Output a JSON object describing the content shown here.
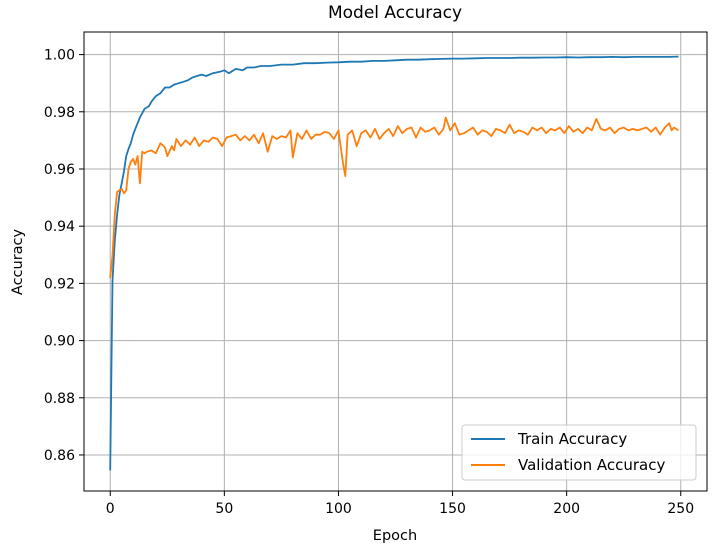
{
  "chart_data": {
    "type": "line",
    "title": "Model Accuracy",
    "xlabel": "Epoch",
    "ylabel": "Accuracy",
    "xlim": [
      -11.5,
      261.5
    ],
    "ylim": [
      0.8474,
      1.0079
    ],
    "xticks": [
      0,
      50,
      100,
      150,
      200,
      250
    ],
    "xtick_labels": [
      "0",
      "50",
      "100",
      "150",
      "200",
      "250"
    ],
    "yticks": [
      0.86,
      0.88,
      0.9,
      0.92,
      0.94,
      0.96,
      0.98,
      1.0
    ],
    "ytick_labels": [
      "0.86",
      "0.88",
      "0.90",
      "0.92",
      "0.94",
      "0.96",
      "0.98",
      "1.00"
    ],
    "grid": true,
    "legend_location": "lower right",
    "series": [
      {
        "name": "Train Accuracy",
        "color": "#1f77b4",
        "points": [
          [
            0,
            0.8546
          ],
          [
            1,
            0.921
          ],
          [
            2,
            0.935
          ],
          [
            3,
            0.944
          ],
          [
            4,
            0.951
          ],
          [
            5,
            0.955
          ],
          [
            6,
            0.959
          ],
          [
            7,
            0.9645
          ],
          [
            8,
            0.967
          ],
          [
            9,
            0.969
          ],
          [
            10,
            0.972
          ],
          [
            11,
            0.974
          ],
          [
            12,
            0.976
          ],
          [
            13,
            0.978
          ],
          [
            14,
            0.9795
          ],
          [
            15,
            0.981
          ],
          [
            16,
            0.9815
          ],
          [
            17,
            0.982
          ],
          [
            18,
            0.9835
          ],
          [
            19,
            0.9845
          ],
          [
            20,
            0.9855
          ],
          [
            22,
            0.9865
          ],
          [
            24,
            0.9885
          ],
          [
            26,
            0.9885
          ],
          [
            28,
            0.9895
          ],
          [
            30,
            0.99
          ],
          [
            32,
            0.9905
          ],
          [
            34,
            0.991
          ],
          [
            36,
            0.992
          ],
          [
            38,
            0.9925
          ],
          [
            40,
            0.993
          ],
          [
            42,
            0.9925
          ],
          [
            45,
            0.9935
          ],
          [
            48,
            0.994
          ],
          [
            50,
            0.9945
          ],
          [
            52,
            0.9935
          ],
          [
            55,
            0.995
          ],
          [
            58,
            0.9945
          ],
          [
            60,
            0.9955
          ],
          [
            63,
            0.9955
          ],
          [
            66,
            0.996
          ],
          [
            70,
            0.996
          ],
          [
            75,
            0.9965
          ],
          [
            80,
            0.9965
          ],
          [
            85,
            0.997
          ],
          [
            90,
            0.997
          ],
          [
            95,
            0.9972
          ],
          [
            100,
            0.9973
          ],
          [
            105,
            0.9975
          ],
          [
            110,
            0.9975
          ],
          [
            115,
            0.9978
          ],
          [
            120,
            0.9978
          ],
          [
            125,
            0.998
          ],
          [
            130,
            0.9982
          ],
          [
            135,
            0.9982
          ],
          [
            140,
            0.9984
          ],
          [
            145,
            0.9985
          ],
          [
            150,
            0.9986
          ],
          [
            155,
            0.9986
          ],
          [
            160,
            0.9987
          ],
          [
            165,
            0.9988
          ],
          [
            170,
            0.9988
          ],
          [
            175,
            0.9988
          ],
          [
            180,
            0.9989
          ],
          [
            185,
            0.9989
          ],
          [
            190,
            0.999
          ],
          [
            195,
            0.999
          ],
          [
            200,
            0.9991
          ],
          [
            205,
            0.999
          ],
          [
            210,
            0.9991
          ],
          [
            215,
            0.9991
          ],
          [
            220,
            0.9992
          ],
          [
            225,
            0.9991
          ],
          [
            230,
            0.9992
          ],
          [
            235,
            0.9992
          ],
          [
            240,
            0.9992
          ],
          [
            245,
            0.9992
          ],
          [
            249,
            0.9993
          ]
        ]
      },
      {
        "name": "Validation Accuracy",
        "color": "#ff7f0e",
        "points": [
          [
            0,
            0.9218
          ],
          [
            1,
            0.93
          ],
          [
            2,
            0.944
          ],
          [
            3,
            0.952
          ],
          [
            4,
            0.9525
          ],
          [
            5,
            0.953
          ],
          [
            6,
            0.9515
          ],
          [
            7,
            0.9525
          ],
          [
            8,
            0.96
          ],
          [
            9,
            0.9625
          ],
          [
            10,
            0.9635
          ],
          [
            11,
            0.9615
          ],
          [
            12,
            0.9645
          ],
          [
            13,
            0.955
          ],
          [
            14,
            0.966
          ],
          [
            15,
            0.9655
          ],
          [
            16,
            0.966
          ],
          [
            18,
            0.9665
          ],
          [
            20,
            0.9655
          ],
          [
            22,
            0.969
          ],
          [
            24,
            0.9675
          ],
          [
            25,
            0.9645
          ],
          [
            27,
            0.968
          ],
          [
            28,
            0.9665
          ],
          [
            29,
            0.9705
          ],
          [
            31,
            0.968
          ],
          [
            33,
            0.97
          ],
          [
            35,
            0.9685
          ],
          [
            37,
            0.971
          ],
          [
            39,
            0.968
          ],
          [
            41,
            0.97
          ],
          [
            43,
            0.9695
          ],
          [
            45,
            0.971
          ],
          [
            47,
            0.9705
          ],
          [
            49,
            0.968
          ],
          [
            51,
            0.971
          ],
          [
            53,
            0.9715
          ],
          [
            55,
            0.972
          ],
          [
            57,
            0.97
          ],
          [
            59,
            0.9715
          ],
          [
            61,
            0.97
          ],
          [
            63,
            0.972
          ],
          [
            65,
            0.969
          ],
          [
            67,
            0.9725
          ],
          [
            69,
            0.966
          ],
          [
            71,
            0.9715
          ],
          [
            73,
            0.9705
          ],
          [
            75,
            0.9715
          ],
          [
            77,
            0.971
          ],
          [
            79,
            0.9735
          ],
          [
            80,
            0.964
          ],
          [
            82,
            0.9725
          ],
          [
            84,
            0.9705
          ],
          [
            86,
            0.9735
          ],
          [
            88,
            0.9705
          ],
          [
            90,
            0.972
          ],
          [
            92,
            0.972
          ],
          [
            94,
            0.973
          ],
          [
            96,
            0.9725
          ],
          [
            98,
            0.9705
          ],
          [
            100,
            0.9735
          ],
          [
            102,
            0.962
          ],
          [
            103,
            0.9575
          ],
          [
            104,
            0.972
          ],
          [
            106,
            0.9735
          ],
          [
            108,
            0.968
          ],
          [
            110,
            0.9725
          ],
          [
            112,
            0.9735
          ],
          [
            114,
            0.971
          ],
          [
            116,
            0.974
          ],
          [
            118,
            0.9705
          ],
          [
            120,
            0.9725
          ],
          [
            122,
            0.974
          ],
          [
            124,
            0.9715
          ],
          [
            126,
            0.975
          ],
          [
            128,
            0.9725
          ],
          [
            130,
            0.974
          ],
          [
            132,
            0.9745
          ],
          [
            134,
            0.971
          ],
          [
            136,
            0.9745
          ],
          [
            138,
            0.973
          ],
          [
            140,
            0.9735
          ],
          [
            142,
            0.9745
          ],
          [
            144,
            0.972
          ],
          [
            146,
            0.974
          ],
          [
            147,
            0.978
          ],
          [
            149,
            0.9735
          ],
          [
            151,
            0.976
          ],
          [
            153,
            0.972
          ],
          [
            155,
            0.9725
          ],
          [
            157,
            0.9735
          ],
          [
            159,
            0.9745
          ],
          [
            161,
            0.972
          ],
          [
            163,
            0.9735
          ],
          [
            165,
            0.973
          ],
          [
            167,
            0.9715
          ],
          [
            169,
            0.974
          ],
          [
            171,
            0.9735
          ],
          [
            173,
            0.9725
          ],
          [
            175,
            0.9755
          ],
          [
            177,
            0.9725
          ],
          [
            179,
            0.9735
          ],
          [
            181,
            0.973
          ],
          [
            183,
            0.972
          ],
          [
            185,
            0.9745
          ],
          [
            187,
            0.9735
          ],
          [
            189,
            0.9745
          ],
          [
            191,
            0.9725
          ],
          [
            193,
            0.974
          ],
          [
            195,
            0.9735
          ],
          [
            197,
            0.9745
          ],
          [
            199,
            0.9725
          ],
          [
            201,
            0.975
          ],
          [
            203,
            0.973
          ],
          [
            205,
            0.974
          ],
          [
            207,
            0.9725
          ],
          [
            209,
            0.9745
          ],
          [
            211,
            0.9735
          ],
          [
            213,
            0.9775
          ],
          [
            215,
            0.974
          ],
          [
            217,
            0.9735
          ],
          [
            219,
            0.9745
          ],
          [
            221,
            0.9725
          ],
          [
            223,
            0.974
          ],
          [
            225,
            0.9745
          ],
          [
            227,
            0.9735
          ],
          [
            229,
            0.974
          ],
          [
            231,
            0.9735
          ],
          [
            233,
            0.974
          ],
          [
            235,
            0.9745
          ],
          [
            237,
            0.973
          ],
          [
            239,
            0.9745
          ],
          [
            241,
            0.972
          ],
          [
            243,
            0.9745
          ],
          [
            245,
            0.976
          ],
          [
            246,
            0.9735
          ],
          [
            247,
            0.9745
          ],
          [
            249,
            0.9735
          ]
        ]
      }
    ]
  }
}
